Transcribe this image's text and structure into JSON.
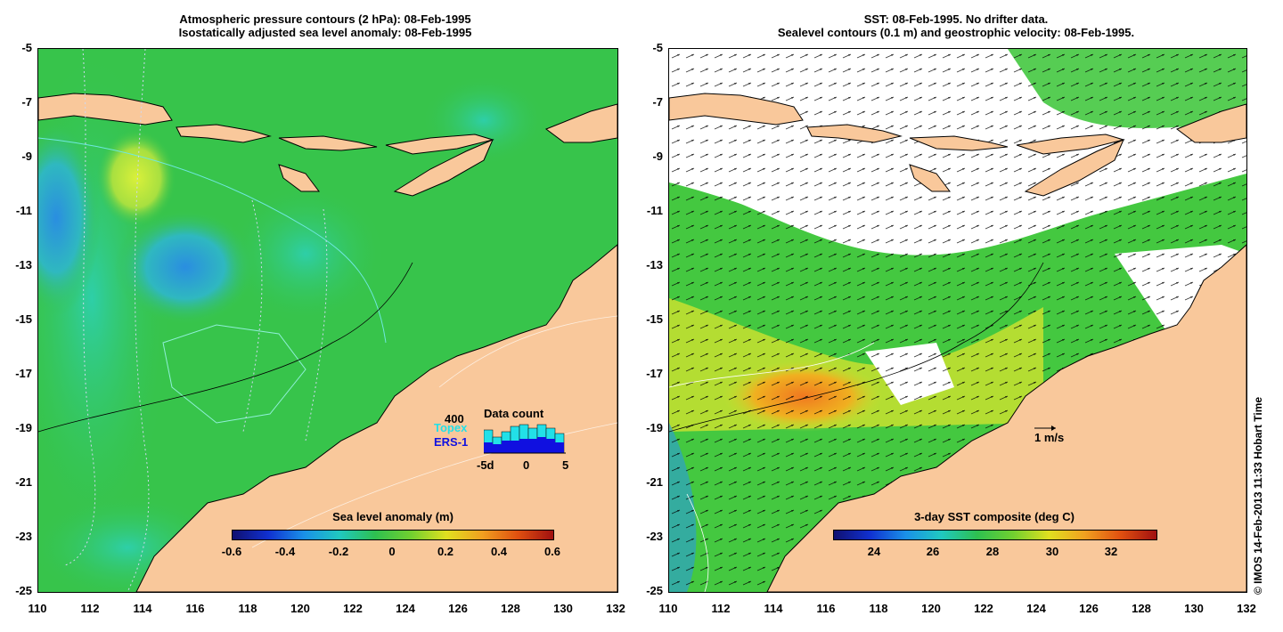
{
  "left_panel": {
    "title_line1": "Atmospheric pressure contours (2 hPa): 08-Feb-1995",
    "title_line2": "Isostatically adjusted sea level anomaly: 08-Feb-1995",
    "colorbar_title": "Sea level anomaly (m)",
    "colorbar_ticks": [
      "-0.6",
      "-0.4",
      "-0.2",
      "0",
      "0.2",
      "0.4",
      "0.6"
    ],
    "data_count": {
      "title": "Data count",
      "max_label": "400",
      "series1": "Topex",
      "series2": "ERS-1",
      "ticks": [
        "-5d",
        "0",
        "5"
      ],
      "topex_color": "#22e0e8",
      "ers_color": "#1010e0"
    }
  },
  "right_panel": {
    "title_line1": "SST: 08-Feb-1995. No drifter data.",
    "title_line2": "Sealevel contours (0.1 m) and geostrophic velocity: 08-Feb-1995.",
    "colorbar_title": "3-day SST composite (deg C)",
    "colorbar_ticks": [
      "24",
      "26",
      "28",
      "30",
      "32"
    ],
    "velocity_scale_label": "1 m/s"
  },
  "axes": {
    "y_labels": [
      "-5",
      "-7",
      "-9",
      "-11",
      "-13",
      "-15",
      "-17",
      "-19",
      "-21",
      "-23",
      "-25"
    ],
    "x_labels": [
      "110",
      "112",
      "114",
      "116",
      "118",
      "120",
      "122",
      "124",
      "126",
      "128",
      "130",
      "132"
    ]
  },
  "copyright": "© IMOS 14-Feb-2013 11:33 Hobart Time",
  "colors": {
    "land": "#f9c89b",
    "ocean_green": "#33c24a",
    "ocean_cyan": "#2ec9a0"
  }
}
